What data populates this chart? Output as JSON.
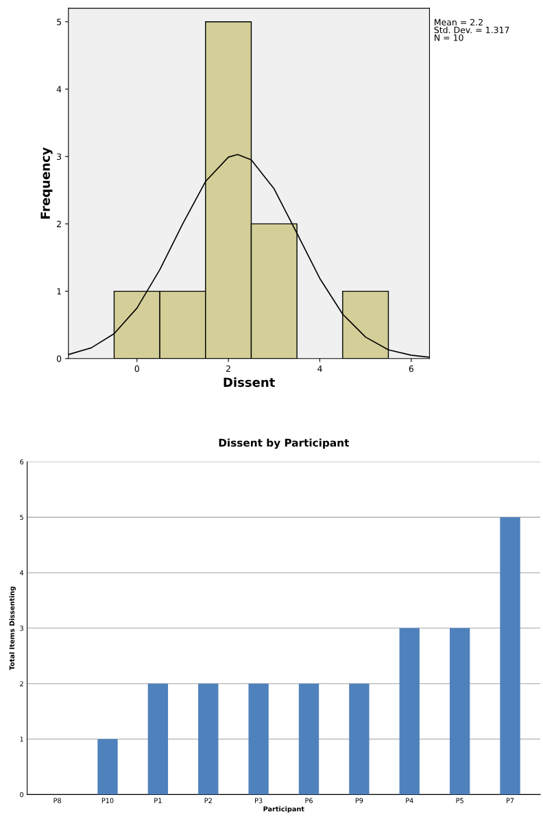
{
  "chart_data": [
    {
      "type": "histogram",
      "xlabel": "Dissent",
      "ylabel": "Frequency",
      "bins": [
        -0.5,
        0.5,
        1.5,
        2.5,
        3.5,
        4.5,
        5.5
      ],
      "values": [
        1,
        1,
        5,
        2,
        0,
        1
      ],
      "color": "#d4cf98",
      "series": [
        {
          "type": "line",
          "color": "#000000",
          "x": [
            -1.5,
            -1,
            -0.5,
            0,
            0.5,
            1,
            1.5,
            2,
            2.2,
            2.5,
            3,
            3.5,
            4,
            4.5,
            5,
            5.5,
            6,
            6.4
          ],
          "values": [
            0.06,
            0.16,
            0.37,
            0.75,
            1.32,
            2.0,
            2.63,
            2.99,
            3.03,
            2.95,
            2.52,
            1.86,
            1.19,
            0.66,
            0.32,
            0.13,
            0.05,
            0.02
          ]
        }
      ],
      "xlim": [
        -1.5,
        6.4
      ],
      "ylim": [
        0,
        5.2
      ],
      "xticks": [
        0,
        2,
        4,
        6
      ],
      "yticks": [
        0,
        1,
        2,
        3,
        4,
        5
      ],
      "annotations": [
        "Mean = 2.2",
        "Std. Dev. = 1.317",
        "N = 10"
      ],
      "grid": false,
      "legend": false
    },
    {
      "type": "bar",
      "title": "Dissent by Participant",
      "xlabel": "Participant",
      "ylabel": "Total Items Dissenting",
      "categories": [
        "P8",
        "P10",
        "P1",
        "P2",
        "P3",
        "P6",
        "P9",
        "P4",
        "P5",
        "P7"
      ],
      "values": [
        0,
        1,
        2,
        2,
        2,
        2,
        2,
        3,
        3,
        5
      ],
      "color": "#4f81bd",
      "ylim": [
        0,
        6
      ],
      "yticks": [
        0,
        1,
        2,
        3,
        4,
        5,
        6
      ],
      "grid": "y",
      "legend": false
    }
  ]
}
